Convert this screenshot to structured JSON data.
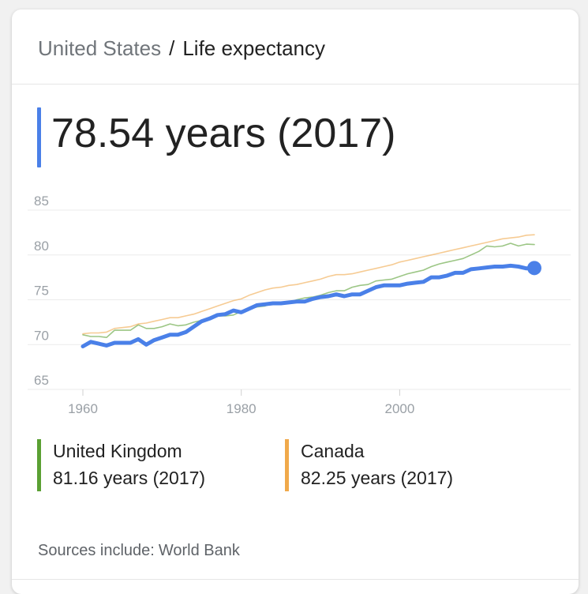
{
  "breadcrumb": {
    "country": "United States",
    "separator": "/",
    "topic": "Life expectancy"
  },
  "headline": {
    "value": "78.54 years (2017)",
    "color": "#4a80e8"
  },
  "legend": [
    {
      "name": "United Kingdom",
      "value": "81.16 years (2017)",
      "color": "#5aa033"
    },
    {
      "name": "Canada",
      "value": "82.25 years (2017)",
      "color": "#f0a94b"
    }
  ],
  "sources": {
    "label": "Sources include:",
    "name": "World Bank"
  },
  "chart_data": {
    "type": "line",
    "ylim": [
      65,
      85
    ],
    "xlim": [
      1960,
      2017
    ],
    "y_ticks": [
      85,
      80,
      75,
      70,
      65
    ],
    "x_ticks": [
      1960,
      1980,
      2000
    ],
    "grid": true,
    "x": [
      1960,
      1961,
      1962,
      1963,
      1964,
      1965,
      1966,
      1967,
      1968,
      1969,
      1970,
      1971,
      1972,
      1973,
      1974,
      1975,
      1976,
      1977,
      1978,
      1979,
      1980,
      1981,
      1982,
      1983,
      1984,
      1985,
      1986,
      1987,
      1988,
      1989,
      1990,
      1991,
      1992,
      1993,
      1994,
      1995,
      1996,
      1997,
      1998,
      1999,
      2000,
      2001,
      2002,
      2003,
      2004,
      2005,
      2006,
      2007,
      2008,
      2009,
      2010,
      2011,
      2012,
      2013,
      2014,
      2015,
      2016,
      2017
    ],
    "series": [
      {
        "name": "United States",
        "color": "#4a80e8",
        "emphasis": true,
        "values": [
          69.8,
          70.3,
          70.1,
          69.9,
          70.2,
          70.2,
          70.2,
          70.6,
          70.0,
          70.5,
          70.8,
          71.1,
          71.1,
          71.4,
          72.0,
          72.6,
          72.9,
          73.3,
          73.4,
          73.8,
          73.6,
          74.0,
          74.4,
          74.5,
          74.6,
          74.6,
          74.7,
          74.8,
          74.8,
          75.1,
          75.3,
          75.4,
          75.6,
          75.4,
          75.6,
          75.6,
          76.0,
          76.4,
          76.6,
          76.6,
          76.6,
          76.8,
          76.9,
          77.0,
          77.5,
          77.5,
          77.7,
          78.0,
          78.0,
          78.4,
          78.5,
          78.6,
          78.7,
          78.7,
          78.8,
          78.7,
          78.5,
          78.54
        ]
      },
      {
        "name": "United Kingdom",
        "color": "#5aa033",
        "values": [
          71.1,
          70.9,
          70.9,
          70.8,
          71.6,
          71.6,
          71.6,
          72.2,
          71.8,
          71.8,
          72.0,
          72.3,
          72.1,
          72.2,
          72.5,
          72.7,
          72.8,
          73.2,
          73.2,
          73.3,
          73.7,
          74.0,
          74.2,
          74.3,
          74.6,
          74.6,
          74.7,
          75.0,
          75.2,
          75.3,
          75.5,
          75.8,
          76.0,
          76.0,
          76.4,
          76.6,
          76.7,
          77.1,
          77.2,
          77.3,
          77.6,
          77.9,
          78.1,
          78.3,
          78.7,
          79.0,
          79.2,
          79.4,
          79.6,
          80.0,
          80.4,
          81.0,
          80.9,
          81.0,
          81.3,
          81.0,
          81.2,
          81.16
        ]
      },
      {
        "name": "Canada",
        "color": "#f0a94b",
        "values": [
          71.2,
          71.3,
          71.3,
          71.4,
          71.8,
          71.9,
          72.0,
          72.3,
          72.4,
          72.6,
          72.8,
          73.0,
          73.0,
          73.2,
          73.4,
          73.7,
          74.0,
          74.3,
          74.6,
          74.9,
          75.1,
          75.5,
          75.8,
          76.1,
          76.3,
          76.4,
          76.6,
          76.7,
          76.9,
          77.1,
          77.3,
          77.6,
          77.8,
          77.8,
          77.9,
          78.1,
          78.3,
          78.5,
          78.7,
          78.9,
          79.2,
          79.4,
          79.6,
          79.8,
          80.0,
          80.2,
          80.4,
          80.6,
          80.8,
          81.0,
          81.2,
          81.4,
          81.6,
          81.8,
          81.9,
          82.0,
          82.2,
          82.25
        ]
      }
    ]
  }
}
